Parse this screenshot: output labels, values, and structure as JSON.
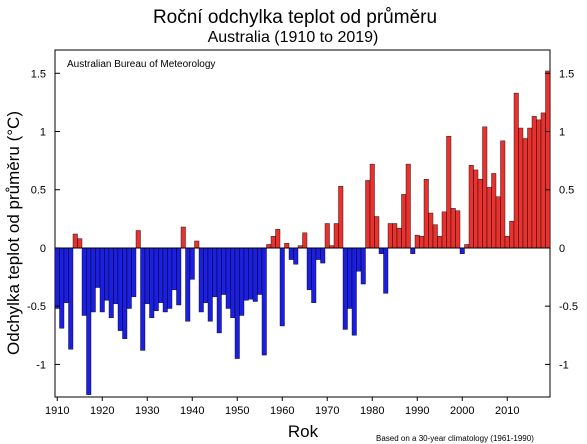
{
  "chart_data": {
    "type": "bar",
    "title": "Roční odchylka teplot od průměru",
    "subtitle": "Australia (1910 to 2019)",
    "xlabel": "Rok",
    "ylabel": "Odchylka teplot od průměru (°C)",
    "source": "Australian Bureau of Meteorology",
    "note": "Based on a 30-year climatology (1961-1990)",
    "xlim": [
      1909.5,
      2019.5
    ],
    "ylim": [
      -1.28,
      1.7
    ],
    "xticks": [
      1910,
      1920,
      1930,
      1940,
      1950,
      1960,
      1970,
      1980,
      1990,
      2000,
      2010
    ],
    "yticks": [
      -1,
      -0.5,
      0,
      0.5,
      1,
      1.5
    ],
    "grid": false,
    "colors": {
      "positive": "#e8322f",
      "negative": "#1c1ee0",
      "outline": "#000000"
    },
    "x": [
      1910,
      1911,
      1912,
      1913,
      1914,
      1915,
      1916,
      1917,
      1918,
      1919,
      1920,
      1921,
      1922,
      1923,
      1924,
      1925,
      1926,
      1927,
      1928,
      1929,
      1930,
      1931,
      1932,
      1933,
      1934,
      1935,
      1936,
      1937,
      1938,
      1939,
      1940,
      1941,
      1942,
      1943,
      1944,
      1945,
      1946,
      1947,
      1948,
      1949,
      1950,
      1951,
      1952,
      1953,
      1954,
      1955,
      1956,
      1957,
      1958,
      1959,
      1960,
      1961,
      1962,
      1963,
      1964,
      1965,
      1966,
      1967,
      1968,
      1969,
      1970,
      1971,
      1972,
      1973,
      1974,
      1975,
      1976,
      1977,
      1978,
      1979,
      1980,
      1981,
      1982,
      1983,
      1984,
      1985,
      1986,
      1987,
      1988,
      1989,
      1990,
      1991,
      1992,
      1993,
      1994,
      1995,
      1996,
      1997,
      1998,
      1999,
      2000,
      2001,
      2002,
      2003,
      2004,
      2005,
      2006,
      2007,
      2008,
      2009,
      2010,
      2011,
      2012,
      2013,
      2014,
      2015,
      2016,
      2017,
      2018,
      2019
    ],
    "values": [
      -0.52,
      -0.69,
      -0.47,
      -0.87,
      0.12,
      0.08,
      -0.58,
      -1.26,
      -0.55,
      -0.34,
      -0.55,
      -0.45,
      -0.6,
      -0.48,
      -0.71,
      -0.78,
      -0.52,
      -0.42,
      0.15,
      -0.88,
      -0.48,
      -0.6,
      -0.54,
      -0.47,
      -0.55,
      -0.52,
      -0.36,
      -0.49,
      0.18,
      -0.63,
      -0.27,
      0.06,
      -0.55,
      -0.47,
      -0.63,
      -0.42,
      -0.73,
      -0.4,
      -0.52,
      -0.6,
      -0.95,
      -0.58,
      -0.45,
      -0.44,
      -0.46,
      -0.4,
      -0.92,
      0.03,
      0.1,
      0.16,
      -0.67,
      0.04,
      -0.1,
      -0.14,
      0.02,
      0.13,
      -0.36,
      -0.47,
      -0.1,
      -0.13,
      0.21,
      0.02,
      0.21,
      0.53,
      -0.7,
      -0.52,
      -0.75,
      -0.2,
      -0.31,
      0.58,
      0.72,
      0.27,
      -0.05,
      -0.39,
      0.21,
      0.21,
      0.17,
      0.46,
      0.72,
      -0.05,
      0.11,
      0.1,
      0.59,
      0.3,
      0.2,
      0.1,
      0.31,
      0.96,
      0.34,
      0.32,
      -0.05,
      0.03,
      0.71,
      0.67,
      0.59,
      1.04,
      0.52,
      0.64,
      0.44,
      0.92,
      0.1,
      0.23,
      1.33,
      1.03,
      0.94,
      1.03,
      1.13,
      1.1,
      1.16,
      1.52
    ]
  }
}
